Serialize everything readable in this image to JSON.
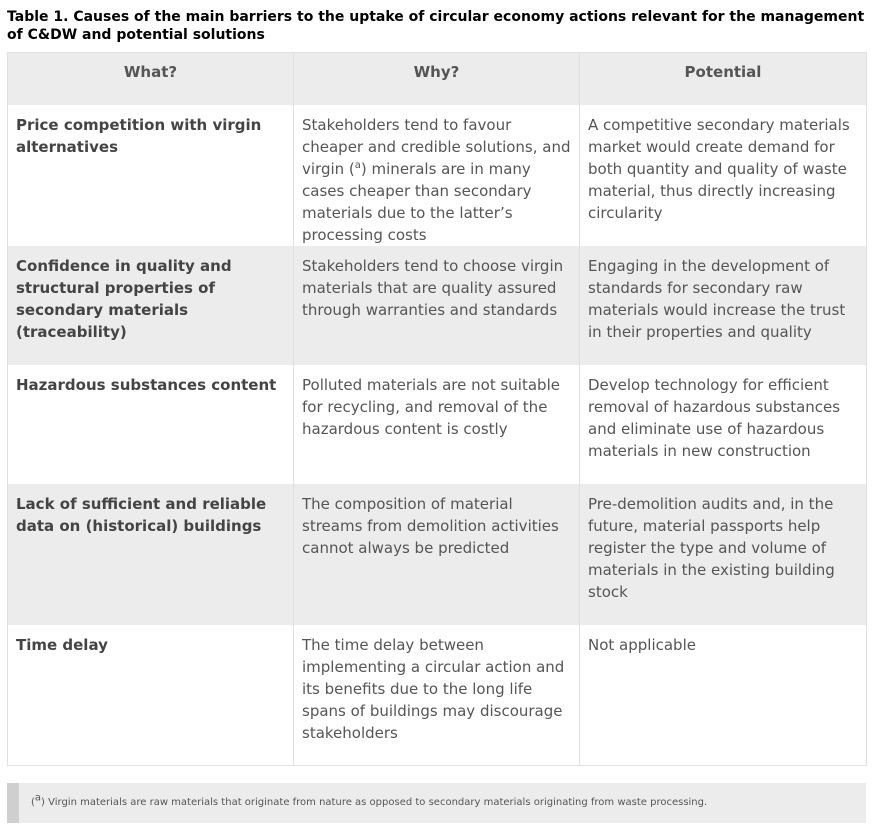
{
  "caption": "Table 1. Causes of the main barriers to the uptake of circular economy actions relevant for the management of C&DW and potential solutions",
  "headers": [
    "What?",
    "Why?",
    "Potential"
  ],
  "rows": [
    {
      "what": "Price competition with virgin alternatives",
      "why_before": "Stakeholders tend to favour cheaper and credible solutions, and virgin (",
      "why_sup": "a",
      "why_after": ") minerals are in many cases cheaper than secondary materials due to the latter’s processing costs",
      "potential": "A competitive secondary materials market would create demand for both quantity and quality of waste material, thus directly increasing circularity"
    },
    {
      "what": "Confidence in quality and structural properties of secondary materials (traceability)",
      "why": "Stakeholders tend to choose virgin materials that are quality assured through warranties and standards",
      "potential": "Engaging in the development of standards for secondary raw materials would increase the trust in their properties and quality"
    },
    {
      "what": "Hazardous substances content",
      "why": "Polluted materials are not suitable for recycling, and removal of the hazardous content is costly",
      "potential": "Develop technology for efficient removal of hazardous substances and eliminate use of hazardous materials in new construction"
    },
    {
      "what": "Lack of sufficient and reliable data on (historical) buildings",
      "why": "The composition of material streams from demolition activities cannot always be predicted",
      "potential": "Pre-demolition audits and, in the future, material passports help register the type and volume of materials in the existing building stock"
    },
    {
      "what": "Time delay",
      "why": "The time delay between implementing a circular action and its benefits due to the long life spans of buildings may discourage stakeholders",
      "potential": "Not applicable"
    }
  ],
  "footnote": {
    "open": "(",
    "sup": "a",
    "rest": ") Virgin materials are raw materials that originate from nature as opposed to secondary materials originating from waste processing."
  }
}
